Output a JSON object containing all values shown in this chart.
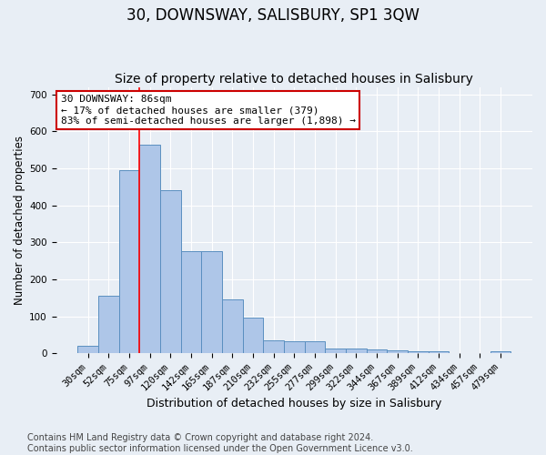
{
  "title": "30, DOWNSWAY, SALISBURY, SP1 3QW",
  "subtitle": "Size of property relative to detached houses in Salisbury",
  "xlabel": "Distribution of detached houses by size in Salisbury",
  "ylabel": "Number of detached properties",
  "categories": [
    "30sqm",
    "52sqm",
    "75sqm",
    "97sqm",
    "120sqm",
    "142sqm",
    "165sqm",
    "187sqm",
    "210sqm",
    "232sqm",
    "255sqm",
    "277sqm",
    "299sqm",
    "322sqm",
    "344sqm",
    "367sqm",
    "389sqm",
    "412sqm",
    "434sqm",
    "457sqm",
    "479sqm"
  ],
  "values": [
    20,
    155,
    495,
    565,
    440,
    275,
    275,
    145,
    97,
    35,
    32,
    32,
    12,
    12,
    10,
    8,
    5,
    5,
    0,
    0,
    5
  ],
  "bar_color": "#aec6e8",
  "bar_edge_color": "#5a8fc0",
  "background_color": "#e8eef5",
  "annotation_box_text": "30 DOWNSWAY: 86sqm\n← 17% of detached houses are smaller (379)\n83% of semi-detached houses are larger (1,898) →",
  "annotation_box_color": "#ffffff",
  "annotation_box_edge_color": "#cc0000",
  "red_line_x": 2.5,
  "ylim": [
    0,
    720
  ],
  "yticks": [
    0,
    100,
    200,
    300,
    400,
    500,
    600,
    700
  ],
  "footer_text": "Contains HM Land Registry data © Crown copyright and database right 2024.\nContains public sector information licensed under the Open Government Licence v3.0.",
  "title_fontsize": 12,
  "subtitle_fontsize": 10,
  "xlabel_fontsize": 9,
  "ylabel_fontsize": 8.5,
  "tick_fontsize": 7.5,
  "annotation_fontsize": 8,
  "footer_fontsize": 7
}
